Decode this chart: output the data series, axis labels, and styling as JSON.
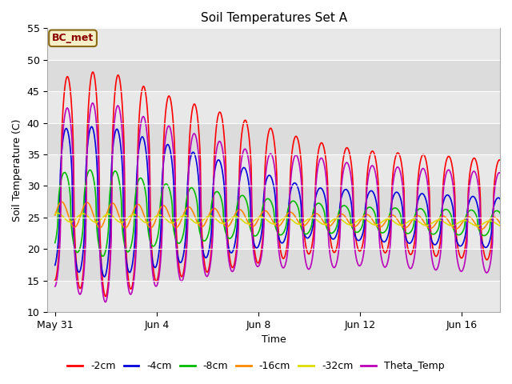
{
  "title": "Soil Temperatures Set A",
  "xlabel": "Time",
  "ylabel": "Soil Temperature (C)",
  "ylim": [
    10,
    55
  ],
  "yticks": [
    10,
    15,
    20,
    25,
    30,
    35,
    40,
    45,
    50,
    55
  ],
  "plot_bg": "#dcdcdc",
  "band_color": "#e8e8e8",
  "annotation_text": "BC_met",
  "annotation_bg": "#f5f0c8",
  "annotation_border": "#8b6914",
  "legend_items": [
    "-2cm",
    "-4cm",
    "-8cm",
    "-16cm",
    "-32cm",
    "Theta_Temp"
  ],
  "line_colors": [
    "#ff0000",
    "#0000dd",
    "#00bb00",
    "#ff8800",
    "#dddd00",
    "#bb00bb"
  ],
  "line_widths": [
    1.2,
    1.2,
    1.2,
    1.2,
    1.2,
    1.2
  ],
  "x_tick_labels": [
    "May 31",
    "Jun 4",
    "Jun 8",
    "Jun 12",
    "Jun 16"
  ],
  "x_tick_positions": [
    0,
    4,
    8,
    12,
    16
  ],
  "num_days": 18,
  "pts_per_day": 48
}
